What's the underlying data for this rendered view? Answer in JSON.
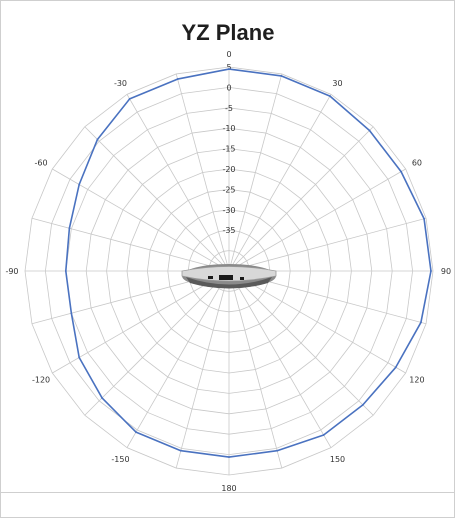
{
  "chart_data": {
    "type": "polar-line",
    "title": "YZ Plane",
    "angle_ticks": [
      "0",
      "30",
      "60",
      "90",
      "120",
      "150",
      "180",
      "-150",
      "-120",
      "-90",
      "-60",
      "-30"
    ],
    "angle_tick_values": [
      0,
      30,
      60,
      90,
      120,
      150,
      180,
      -150,
      -120,
      -90,
      -60,
      -30
    ],
    "radial_ticks": [
      "5",
      "0",
      "-5",
      "-10",
      "-15",
      "-20",
      "-25",
      "-30",
      "-35"
    ],
    "radial_tick_values": [
      5,
      0,
      -5,
      -10,
      -15,
      -20,
      -25,
      -30,
      -35
    ],
    "rlim": [
      -45,
      5
    ],
    "angle_grid_step_deg": 15,
    "series_color": "#4a72c0",
    "grid_color": "#c8c8c8",
    "series": [
      {
        "angles_deg": [
          0,
          15,
          30,
          45,
          60,
          75,
          90,
          105,
          120,
          135,
          150,
          165,
          180,
          -165,
          -150,
          -135,
          -120,
          -105,
          -90,
          -75,
          -60,
          -45,
          -30,
          -15
        ],
        "values_db": [
          4.5,
          4.5,
          4.5,
          3.7,
          3.7,
          4.5,
          4.5,
          3.7,
          2.2,
          1.4,
          1.4,
          0.6,
          0.6,
          0.6,
          0.6,
          -1.0,
          -2.6,
          -5.0,
          -5.0,
          -4.5,
          -2.6,
          0.6,
          3.7,
          3.7
        ]
      }
    ]
  },
  "device_image": {
    "icon": "antenna-device-icon"
  }
}
